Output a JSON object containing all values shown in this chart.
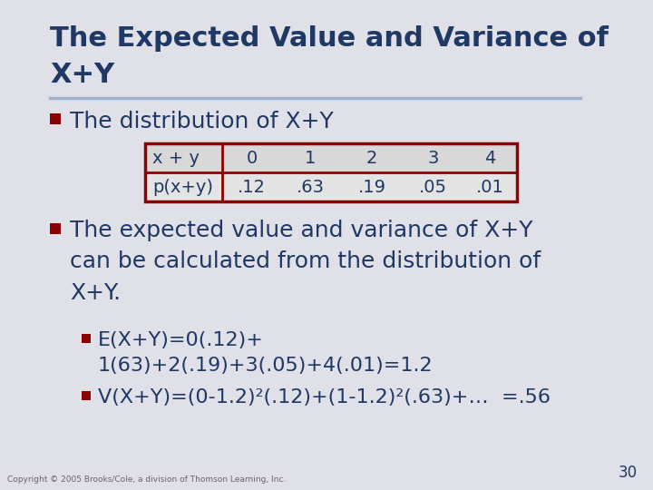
{
  "title_line1": "The Expected Value and Variance of",
  "title_line2": "X+Y",
  "title_color": "#1F3864",
  "title_fontsize": 22,
  "bg_color": "#D9D9D9",
  "slide_bg": "#E0E0E8",
  "bullet_color": "#8B0000",
  "bullet1_text": "The distribution of X+Y",
  "bullet2_text": "The expected value and variance of X+Y\ncan be calculated from the distribution of\nX+Y.",
  "subbullet1_text": "E(X+Y)=0(.12)+\n1(63)+2(.19)+3(.05)+4(.01)=1.2",
  "subbullet2_text": "V(X+Y)=(0-1.2)²(.12)+(1-1.2)²(.63)+…  =.56",
  "body_color": "#1F3864",
  "body_fontsize": 16,
  "table_header": [
    "x + y",
    "0",
    "1",
    "2",
    "3",
    "4"
  ],
  "table_row": [
    "p(x+y)",
    ".12",
    ".63",
    ".19",
    ".05",
    ".01"
  ],
  "table_border_color": "#8B0000",
  "footer_text": "Copyright © 2005 Brooks/Cole, a division of Thomson Learning, Inc.",
  "footer_color": "#666666",
  "page_number": "30",
  "underline_color": "#9EB3CB"
}
